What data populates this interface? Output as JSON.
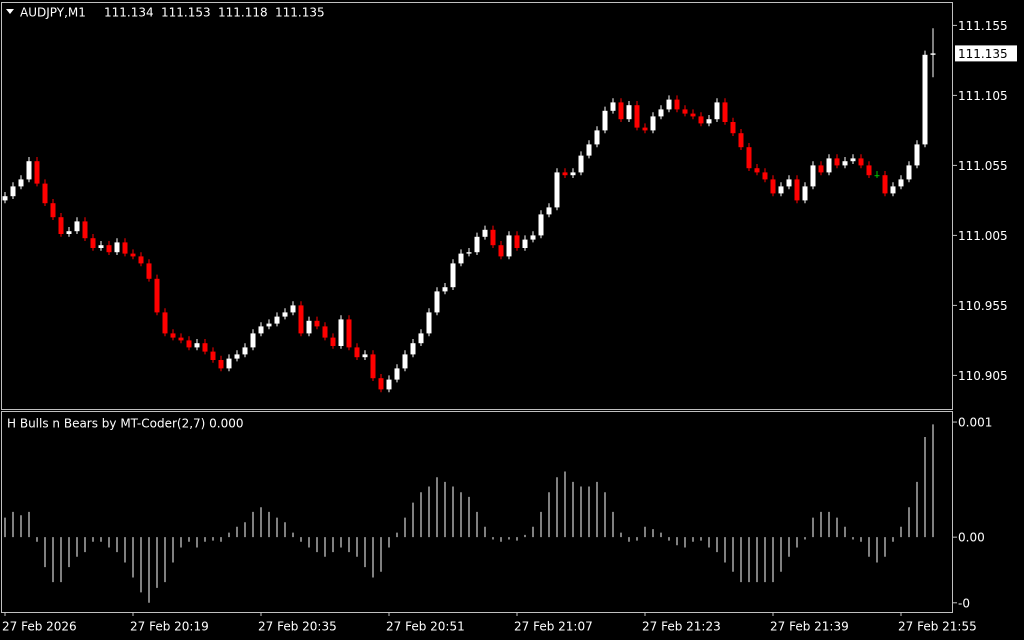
{
  "chart_data": [
    {
      "type": "candlestick",
      "title": "AUDJPY,M1",
      "bull_color": "#ffffff",
      "bear_color": "#ff0000",
      "doji_color": "#00c000",
      "ylim": [
        110.881,
        111.171
      ],
      "yticks": [
        111.155,
        111.105,
        111.055,
        111.005,
        110.955,
        110.905
      ],
      "grid": false,
      "candles": [
        [
          111.03,
          111.036,
          111.028,
          111.033
        ],
        [
          111.033,
          111.043,
          111.031,
          111.04
        ],
        [
          111.04,
          111.048,
          111.038,
          111.045
        ],
        [
          111.045,
          111.061,
          111.043,
          111.058
        ],
        [
          111.058,
          111.061,
          111.04,
          111.042
        ],
        [
          111.042,
          111.045,
          111.026,
          111.028
        ],
        [
          111.028,
          111.031,
          111.016,
          111.018
        ],
        [
          111.018,
          111.021,
          111.004,
          111.006
        ],
        [
          111.006,
          111.011,
          111.004,
          111.008
        ],
        [
          111.008,
          111.018,
          111.006,
          111.015
        ],
        [
          111.015,
          111.018,
          111.001,
          111.003
        ],
        [
          111.003,
          111.006,
          110.994,
          110.996
        ],
        [
          110.996,
          111.001,
          110.994,
          110.998
        ],
        [
          110.998,
          111.001,
          110.991,
          110.993
        ],
        [
          110.993,
          111.003,
          110.991,
          111.0
        ],
        [
          111.0,
          111.003,
          110.99,
          110.992
        ],
        [
          110.992,
          110.995,
          110.988,
          110.99
        ],
        [
          110.99,
          110.993,
          110.983,
          110.985
        ],
        [
          110.985,
          110.988,
          110.972,
          110.974
        ],
        [
          110.974,
          110.977,
          110.948,
          110.95
        ],
        [
          110.95,
          110.953,
          110.933,
          110.935
        ],
        [
          110.935,
          110.938,
          110.93,
          110.932
        ],
        [
          110.932,
          110.935,
          110.928,
          110.93
        ],
        [
          110.93,
          110.933,
          110.923,
          110.925
        ],
        [
          110.925,
          110.931,
          110.923,
          110.928
        ],
        [
          110.928,
          110.931,
          110.92,
          110.922
        ],
        [
          110.922,
          110.925,
          110.914,
          110.916
        ],
        [
          110.916,
          110.919,
          110.908,
          110.91
        ],
        [
          110.91,
          110.92,
          110.908,
          110.917
        ],
        [
          110.917,
          110.923,
          110.915,
          110.92
        ],
        [
          110.92,
          110.928,
          110.918,
          110.925
        ],
        [
          110.925,
          110.938,
          110.923,
          110.935
        ],
        [
          110.935,
          110.943,
          110.933,
          110.94
        ],
        [
          110.94,
          110.945,
          110.938,
          110.942
        ],
        [
          110.942,
          110.95,
          110.94,
          110.947
        ],
        [
          110.947,
          110.953,
          110.945,
          110.95
        ],
        [
          110.95,
          110.958,
          110.948,
          110.955
        ],
        [
          110.955,
          110.958,
          110.933,
          110.935
        ],
        [
          110.935,
          110.947,
          110.933,
          110.944
        ],
        [
          110.944,
          110.947,
          110.938,
          110.94
        ],
        [
          110.94,
          110.943,
          110.93,
          110.932
        ],
        [
          110.932,
          110.935,
          110.924,
          110.926
        ],
        [
          110.926,
          110.948,
          110.924,
          110.945
        ],
        [
          110.945,
          110.948,
          110.923,
          110.925
        ],
        [
          110.925,
          110.928,
          110.916,
          110.918
        ],
        [
          110.918,
          110.923,
          110.916,
          110.92
        ],
        [
          110.92,
          110.923,
          110.901,
          110.903
        ],
        [
          110.903,
          110.906,
          110.893,
          110.895
        ],
        [
          110.895,
          110.905,
          110.893,
          110.902
        ],
        [
          110.902,
          110.913,
          110.9,
          110.91
        ],
        [
          110.91,
          110.923,
          110.908,
          110.92
        ],
        [
          110.92,
          110.931,
          110.918,
          110.928
        ],
        [
          110.928,
          110.938,
          110.926,
          110.935
        ],
        [
          110.935,
          110.953,
          110.933,
          110.95
        ],
        [
          110.95,
          110.968,
          110.948,
          110.965
        ],
        [
          110.965,
          110.971,
          110.963,
          110.968
        ],
        [
          110.968,
          110.988,
          110.966,
          110.985
        ],
        [
          110.985,
          110.995,
          110.983,
          110.992
        ],
        [
          110.992,
          110.996,
          110.99,
          110.993
        ],
        [
          110.993,
          111.007,
          110.991,
          111.004
        ],
        [
          111.004,
          111.012,
          111.002,
          111.009
        ],
        [
          111.009,
          111.012,
          110.996,
          110.998
        ],
        [
          110.998,
          111.001,
          110.988,
          110.99
        ],
        [
          110.99,
          111.008,
          110.988,
          111.005
        ],
        [
          111.005,
          111.008,
          110.994,
          110.996
        ],
        [
          110.996,
          111.005,
          110.994,
          111.002
        ],
        [
          111.002,
          111.008,
          111.0,
          111.005
        ],
        [
          111.005,
          111.023,
          111.003,
          111.02
        ],
        [
          111.02,
          111.028,
          111.018,
          111.025
        ],
        [
          111.025,
          111.053,
          111.023,
          111.05
        ],
        [
          111.05,
          111.053,
          111.046,
          111.048
        ],
        [
          111.048,
          111.053,
          111.046,
          111.05
        ],
        [
          111.05,
          111.065,
          111.048,
          111.062
        ],
        [
          111.062,
          111.073,
          111.06,
          111.07
        ],
        [
          111.07,
          111.083,
          111.068,
          111.08
        ],
        [
          111.08,
          111.097,
          111.078,
          111.094
        ],
        [
          111.094,
          111.103,
          111.092,
          111.1
        ],
        [
          111.1,
          111.103,
          111.086,
          111.088
        ],
        [
          111.088,
          111.101,
          111.086,
          111.098
        ],
        [
          111.098,
          111.101,
          111.08,
          111.082
        ],
        [
          111.082,
          111.085,
          111.078,
          111.08
        ],
        [
          111.08,
          111.093,
          111.078,
          111.09
        ],
        [
          111.09,
          111.098,
          111.088,
          111.095
        ],
        [
          111.095,
          111.105,
          111.093,
          111.102
        ],
        [
          111.102,
          111.105,
          111.093,
          111.095
        ],
        [
          111.095,
          111.098,
          111.09,
          111.092
        ],
        [
          111.092,
          111.095,
          111.088,
          111.09
        ],
        [
          111.09,
          111.093,
          111.083,
          111.085
        ],
        [
          111.085,
          111.091,
          111.083,
          111.088
        ],
        [
          111.088,
          111.103,
          111.086,
          111.1
        ],
        [
          111.1,
          111.103,
          111.084,
          111.086
        ],
        [
          111.086,
          111.089,
          111.076,
          111.078
        ],
        [
          111.078,
          111.081,
          111.066,
          111.068
        ],
        [
          111.068,
          111.071,
          111.051,
          111.053
        ],
        [
          111.053,
          111.056,
          111.048,
          111.05
        ],
        [
          111.05,
          111.053,
          111.043,
          111.045
        ],
        [
          111.045,
          111.048,
          111.033,
          111.035
        ],
        [
          111.035,
          111.043,
          111.033,
          111.04
        ],
        [
          111.04,
          111.048,
          111.038,
          111.045
        ],
        [
          111.045,
          111.048,
          111.028,
          111.03
        ],
        [
          111.03,
          111.043,
          111.028,
          111.04
        ],
        [
          111.04,
          111.058,
          111.038,
          111.055
        ],
        [
          111.055,
          111.058,
          111.048,
          111.05
        ],
        [
          111.05,
          111.063,
          111.048,
          111.06
        ],
        [
          111.06,
          111.063,
          111.053,
          111.055
        ],
        [
          111.055,
          111.061,
          111.053,
          111.058
        ],
        [
          111.058,
          111.063,
          111.056,
          111.06
        ],
        [
          111.06,
          111.063,
          111.053,
          111.055
        ],
        [
          111.055,
          111.058,
          111.046,
          111.048
        ],
        [
          111.048,
          111.051,
          111.046,
          111.048
        ],
        [
          111.048,
          111.051,
          111.033,
          111.035
        ],
        [
          111.035,
          111.043,
          111.033,
          111.04
        ],
        [
          111.04,
          111.048,
          111.038,
          111.045
        ],
        [
          111.045,
          111.058,
          111.043,
          111.055
        ],
        [
          111.055,
          111.073,
          111.053,
          111.07
        ],
        [
          111.07,
          111.137,
          111.068,
          111.134
        ],
        [
          111.134,
          111.153,
          111.118,
          111.135
        ]
      ]
    },
    {
      "type": "bar",
      "title": "H Bulls n Bears by MT-Coder(2,7) 0.000",
      "color": "#ffffff",
      "ylim": [
        -0.00065,
        0.001096
      ],
      "yticks": [
        {
          "value": 0.001,
          "label": "0.001"
        },
        {
          "value": 0,
          "label": "0.00"
        },
        {
          "value": -0.00057,
          "label": "-0"
        }
      ],
      "categories": [
        "27 Feb 2026",
        null,
        null,
        null,
        null,
        null,
        null,
        null,
        null,
        null,
        null,
        null,
        null,
        null,
        null,
        null,
        "27 Feb 20:19",
        null,
        null,
        null,
        null,
        null,
        null,
        null,
        null,
        null,
        null,
        null,
        null,
        null,
        null,
        null,
        "27 Feb 20:35",
        null,
        null,
        null,
        null,
        null,
        null,
        null,
        null,
        null,
        null,
        null,
        null,
        null,
        null,
        null,
        "27 Feb 20:51",
        null,
        null,
        null,
        null,
        null,
        null,
        null,
        null,
        null,
        null,
        null,
        null,
        null,
        null,
        null,
        "27 Feb 21:07",
        null,
        null,
        null,
        null,
        null,
        null,
        null,
        null,
        null,
        null,
        null,
        null,
        null,
        null,
        null,
        "27 Feb 21:23",
        null,
        null,
        null,
        null,
        null,
        null,
        null,
        null,
        null,
        null,
        null,
        null,
        null,
        null,
        null,
        "27 Feb 21:39",
        null,
        null,
        null,
        null,
        null,
        null,
        null,
        null,
        null,
        null,
        null,
        null,
        null,
        null,
        null,
        "27 Feb 21:55",
        null,
        null,
        null,
        null
      ],
      "values": [
        0.00017,
        0.00022,
        0.00019,
        0.00022,
        -4e-05,
        -0.00026,
        -0.00039,
        -0.00039,
        -0.00026,
        -0.00017,
        -0.00013,
        -4e-05,
        -4e-05,
        -9e-05,
        -0.00013,
        -0.00022,
        -0.00035,
        -0.00048,
        -0.00057,
        -0.00044,
        -0.00039,
        -0.00022,
        -9e-05,
        -4e-05,
        -9e-05,
        -4e-05,
        -3e-05,
        -4e-05,
        4e-05,
        9e-05,
        0.00013,
        0.00022,
        0.00026,
        0.00022,
        0.00017,
        0.00013,
        4e-05,
        -4e-05,
        -9e-05,
        -0.00013,
        -0.00017,
        -0.00013,
        -9e-05,
        -0.00013,
        -0.00017,
        -0.00026,
        -0.00035,
        -0.0003,
        -9e-05,
        4e-05,
        0.00017,
        0.0003,
        0.00039,
        0.00044,
        0.00052,
        0.00048,
        0.00044,
        0.00039,
        0.00035,
        0.00022,
        9e-05,
        -2e-05,
        -4e-05,
        -2e-05,
        -3e-05,
        2e-05,
        9e-05,
        0.00022,
        0.00039,
        0.00052,
        0.00057,
        0.00048,
        0.00044,
        0.00044,
        0.00048,
        0.00039,
        0.00022,
        4e-05,
        -4e-05,
        -3e-05,
        9e-05,
        7e-05,
        4e-05,
        -3e-05,
        -7e-05,
        -9e-05,
        -4e-05,
        -3e-05,
        -9e-05,
        -0.00013,
        -0.00022,
        -0.0003,
        -0.00039,
        -0.00039,
        -0.00039,
        -0.00039,
        -0.00039,
        -0.0003,
        -0.00017,
        -9e-05,
        -2e-05,
        0.00017,
        0.00022,
        0.00022,
        0.00017,
        9e-05,
        -2e-05,
        -4e-05,
        -0.00017,
        -0.00022,
        -0.00017,
        -4e-05,
        9e-05,
        0.00026,
        0.00048,
        0.00087,
        0.00098
      ]
    }
  ]
}
